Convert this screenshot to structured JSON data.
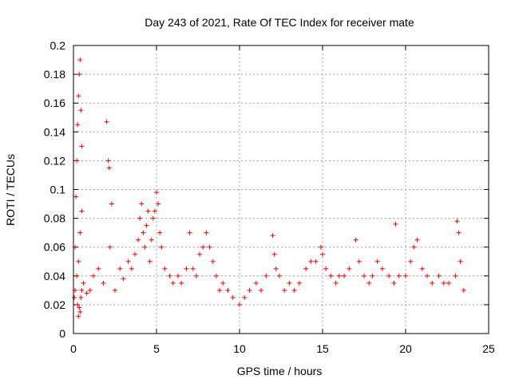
{
  "chart_data": {
    "type": "scatter",
    "title": "Day 243 of 2021, Rate Of TEC Index for receiver mate",
    "xlabel": "GPS time / hours",
    "ylabel": "ROTI / TECUs",
    "xlim": [
      0,
      25
    ],
    "ylim": [
      0,
      0.2
    ],
    "x_ticks": [
      0,
      5,
      10,
      15,
      20,
      25
    ],
    "x_tick_labels": [
      "0",
      "5",
      "10",
      "15",
      "20",
      "25"
    ],
    "y_ticks": [
      0,
      0.02,
      0.04,
      0.06,
      0.08,
      0.1,
      0.12,
      0.14,
      0.16,
      0.18,
      0.2
    ],
    "y_tick_labels": [
      "0",
      "0.02",
      "0.04",
      "0.06",
      "0.08",
      "0.1",
      "0.12",
      "0.14",
      "0.16",
      "0.18",
      "0.2"
    ],
    "grid": true,
    "marker": "+",
    "marker_color": "#ff0000",
    "series": [
      {
        "name": "ROTI",
        "x": [
          0.05,
          0.1,
          0.15,
          0.2,
          0.25,
          0.3,
          0.35,
          0.4,
          0.45,
          0.5,
          0.1,
          0.2,
          0.3,
          0.4,
          0.5,
          0.25,
          0.35,
          0.45,
          0.3,
          0.4,
          0.5,
          0.6,
          0.8,
          1.0,
          1.2,
          1.5,
          1.8,
          2.0,
          2.1,
          2.15,
          2.2,
          2.3,
          2.5,
          2.8,
          3.0,
          3.3,
          3.5,
          3.7,
          3.9,
          4.0,
          4.1,
          4.2,
          4.3,
          4.4,
          4.5,
          4.6,
          4.7,
          4.8,
          4.9,
          5.0,
          5.1,
          5.2,
          5.3,
          5.5,
          5.8,
          6.0,
          6.3,
          6.5,
          6.8,
          7.0,
          7.2,
          7.4,
          7.6,
          7.8,
          8.0,
          8.2,
          8.4,
          8.6,
          8.8,
          9.0,
          9.3,
          9.6,
          10.0,
          10.3,
          10.6,
          11.0,
          11.3,
          11.6,
          12.0,
          12.1,
          12.2,
          12.4,
          12.7,
          13.0,
          13.3,
          13.6,
          14.0,
          14.3,
          14.6,
          14.9,
          15.0,
          15.2,
          15.5,
          15.8,
          16.0,
          16.3,
          16.6,
          17.0,
          17.2,
          17.5,
          17.8,
          18.0,
          18.3,
          18.6,
          19.0,
          19.3,
          19.4,
          19.6,
          20.0,
          20.3,
          20.5,
          20.7,
          21.0,
          21.3,
          21.6,
          22.0,
          22.3,
          22.6,
          23.0,
          23.1,
          23.2,
          23.3,
          23.5
        ],
        "y": [
          0.025,
          0.06,
          0.095,
          0.12,
          0.145,
          0.165,
          0.18,
          0.19,
          0.155,
          0.13,
          0.03,
          0.04,
          0.05,
          0.07,
          0.085,
          0.02,
          0.018,
          0.025,
          0.012,
          0.015,
          0.03,
          0.035,
          0.028,
          0.03,
          0.04,
          0.045,
          0.035,
          0.147,
          0.12,
          0.115,
          0.06,
          0.09,
          0.03,
          0.045,
          0.038,
          0.05,
          0.045,
          0.055,
          0.065,
          0.08,
          0.09,
          0.07,
          0.06,
          0.075,
          0.085,
          0.05,
          0.065,
          0.08,
          0.085,
          0.098,
          0.09,
          0.07,
          0.06,
          0.045,
          0.04,
          0.035,
          0.04,
          0.035,
          0.045,
          0.07,
          0.045,
          0.04,
          0.055,
          0.06,
          0.07,
          0.06,
          0.05,
          0.04,
          0.03,
          0.035,
          0.03,
          0.025,
          0.02,
          0.025,
          0.03,
          0.035,
          0.03,
          0.04,
          0.068,
          0.055,
          0.045,
          0.04,
          0.03,
          0.035,
          0.03,
          0.035,
          0.045,
          0.05,
          0.05,
          0.06,
          0.055,
          0.045,
          0.04,
          0.035,
          0.04,
          0.04,
          0.045,
          0.065,
          0.05,
          0.04,
          0.035,
          0.04,
          0.05,
          0.045,
          0.04,
          0.035,
          0.076,
          0.04,
          0.04,
          0.05,
          0.06,
          0.065,
          0.045,
          0.04,
          0.035,
          0.04,
          0.035,
          0.035,
          0.04,
          0.078,
          0.07,
          0.05,
          0.03
        ]
      }
    ]
  }
}
